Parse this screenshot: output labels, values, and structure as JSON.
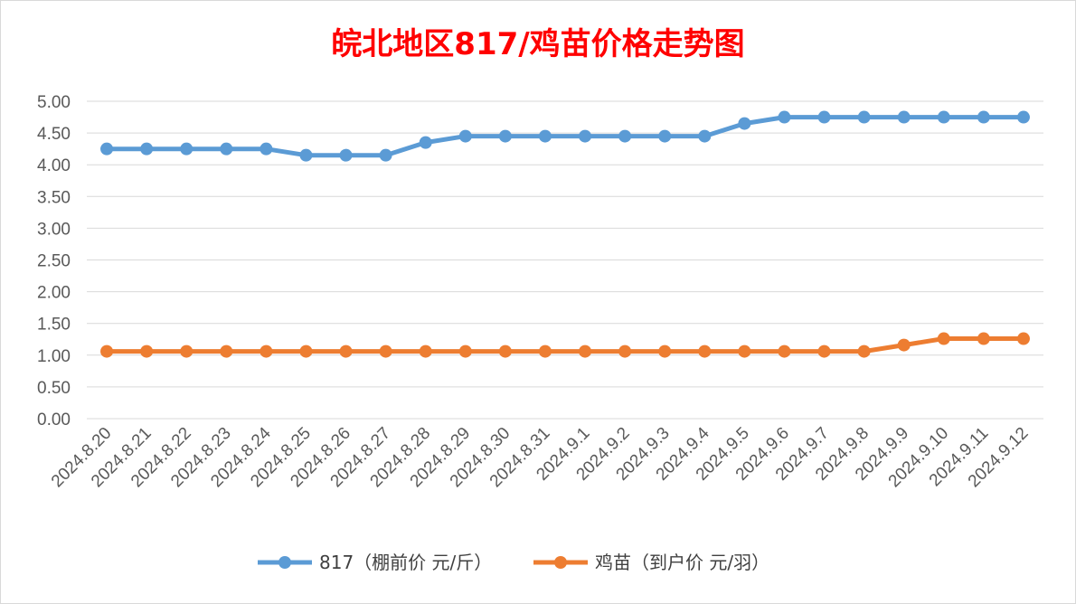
{
  "chart_data": {
    "type": "line",
    "title": "皖北地区817/鸡苗价格走势图",
    "title_color": "#ff0000",
    "xlabel": "",
    "ylabel": "",
    "categories": [
      "2024.8.20",
      "2024.8.21",
      "2024.8.22",
      "2024.8.23",
      "2024.8.24",
      "2024.8.25",
      "2024.8.26",
      "2024.8.27",
      "2024.8.28",
      "2024.8.29",
      "2024.8.30",
      "2024.8.31",
      "2024.9.1",
      "2024.9.2",
      "2024.9.3",
      "2024.9.4",
      "2024.9.5",
      "2024.9.6",
      "2024.9.7",
      "2024.9.8",
      "2024.9.9",
      "2024.9.10",
      "2024.9.11",
      "2024.9.12"
    ],
    "y_ticks": [
      "0.00",
      "0.50",
      "1.00",
      "1.50",
      "2.00",
      "2.50",
      "3.00",
      "3.50",
      "4.00",
      "4.50",
      "5.00"
    ],
    "ylim": [
      0,
      5
    ],
    "grid": true,
    "legend_position": "bottom",
    "series": [
      {
        "name": "817（棚前价 元/斤）",
        "color": "#5b9bd5",
        "values": [
          4.25,
          4.25,
          4.25,
          4.25,
          4.25,
          4.15,
          4.15,
          4.15,
          4.35,
          4.45,
          4.45,
          4.45,
          4.45,
          4.45,
          4.45,
          4.45,
          4.65,
          4.75,
          4.75,
          4.75,
          4.75,
          4.75,
          4.75,
          4.75
        ]
      },
      {
        "name": "鸡苗（到户价 元/羽）",
        "color": "#ed7d31",
        "values": [
          1.06,
          1.06,
          1.06,
          1.06,
          1.06,
          1.06,
          1.06,
          1.06,
          1.06,
          1.06,
          1.06,
          1.06,
          1.06,
          1.06,
          1.06,
          1.06,
          1.06,
          1.06,
          1.06,
          1.06,
          1.16,
          1.26,
          1.26,
          1.26
        ]
      }
    ]
  }
}
